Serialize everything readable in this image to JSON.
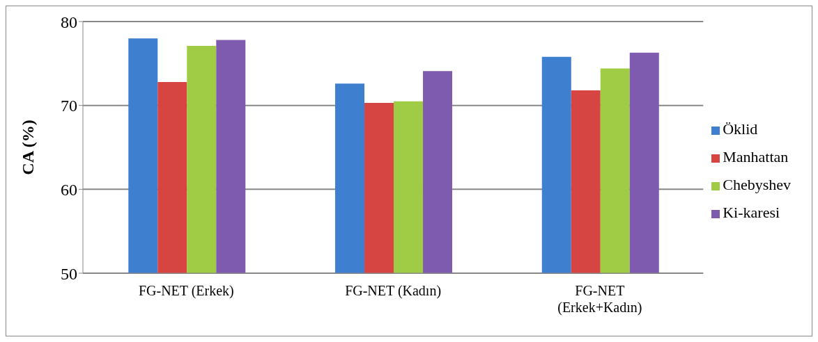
{
  "chart_data": {
    "type": "bar",
    "ylabel": "CA (%)",
    "categories": [
      "FG-NET (Erkek)",
      "FG-NET (Kadın)",
      "FG-NET\n(Erkek+Kadın)"
    ],
    "series": [
      {
        "name": "Öklid",
        "color": "#3f7fcf",
        "values": [
          78.0,
          72.6,
          75.8
        ]
      },
      {
        "name": "Manhattan",
        "color": "#d64541",
        "values": [
          72.8,
          70.3,
          71.8
        ]
      },
      {
        "name": "Chebyshev",
        "color": "#9fcb45",
        "values": [
          77.1,
          70.5,
          74.4
        ]
      },
      {
        "name": "Ki-karesi",
        "color": "#7f5bb0",
        "values": [
          77.8,
          74.1,
          76.3
        ]
      }
    ],
    "ylim": [
      50,
      80
    ],
    "yticks": [
      50,
      60,
      70,
      80
    ],
    "grid": "y",
    "legend": "right"
  }
}
